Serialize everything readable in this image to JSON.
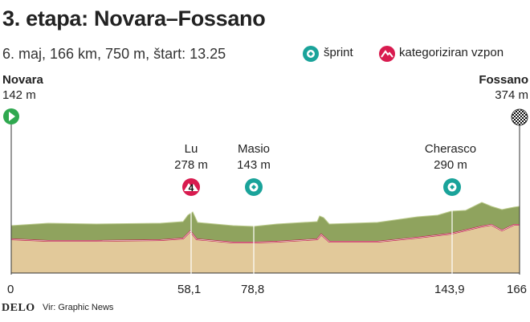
{
  "header": {
    "title": "3. etapa: Novara–Fossano",
    "subtitle": "6. maj, 166 km, 750 m, štart: 13.25"
  },
  "legend": {
    "sprint_label": "šprint",
    "climb_label": "kategoriziran vzpon"
  },
  "start": {
    "name": "Novara",
    "elevation": "142 m",
    "km": "0"
  },
  "finish": {
    "name": "Fossano",
    "elevation": "374 m",
    "km": "166"
  },
  "waypoints": [
    {
      "name": "Lu",
      "elevation": "278 m",
      "km": "58,1",
      "type": "climb",
      "category": "4"
    },
    {
      "name": "Masio",
      "elevation": "143 m",
      "km": "78,8",
      "type": "sprint"
    },
    {
      "name": "Cherasco",
      "elevation": "290 m",
      "km": "143,9",
      "type": "sprint"
    }
  ],
  "footer": {
    "logo": "DELO",
    "source": "Vir: Graphic News"
  },
  "colors": {
    "start_marker": "#2fa84f",
    "sprint_marker": "#1aa39a",
    "climb_marker": "#d81b4f",
    "terrain_top": "#8fa35e",
    "terrain_base": "#e2c99a",
    "profile_line": "#c0294f"
  }
}
